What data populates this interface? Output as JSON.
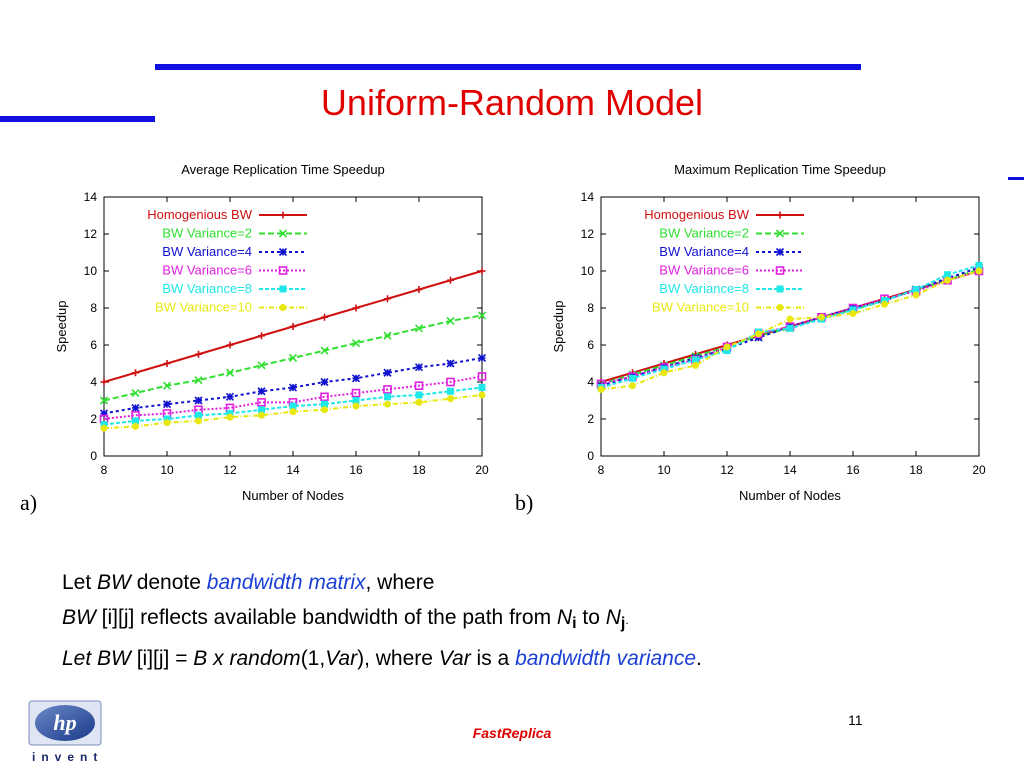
{
  "slide": {
    "title": "Uniform-Random Model",
    "footer": "FastReplica",
    "page_number": "11",
    "logo_text": "hp",
    "logo_tagline": "invent",
    "panel_labels": [
      "a)",
      "b)"
    ]
  },
  "text": {
    "line1": {
      "let": "Let ",
      "bw": "BW",
      "denote": " denote ",
      "bm": "bandwidth matrix",
      "where": ", where"
    },
    "line2": {
      "bw": "BW",
      "rest": " [i][j] reflects available bandwidth of the path from ",
      "n": "N",
      "ni": "i",
      "to": "  to ",
      "n2": "N",
      "nj": "j",
      "dot": "."
    },
    "line3": {
      "let": "Let   BW",
      "ij": " [i][j] = ",
      "expr": " B x random",
      "args": "(1,",
      "var": "Var",
      "close": "),  where ",
      "var2": "Var",
      "isa": " is a ",
      "bv": "bandwidth variance",
      "end": "."
    }
  },
  "colors": {
    "title": "#e00000",
    "bars": "#1010e0",
    "accent_text": "#1a3fd6"
  },
  "chart_data": [
    {
      "type": "line",
      "title": "Average Replication Time Speedup",
      "xlabel": "Number of Nodes",
      "ylabel": "Speedup",
      "xlim": [
        8,
        20
      ],
      "ylim": [
        0,
        14
      ],
      "xticks": [
        8,
        10,
        12,
        14,
        16,
        18,
        20
      ],
      "yticks": [
        0,
        2,
        4,
        6,
        8,
        10,
        12,
        14
      ],
      "legend": "top-left",
      "x": [
        8,
        9,
        10,
        11,
        12,
        13,
        14,
        15,
        16,
        17,
        18,
        19,
        20
      ],
      "series": [
        {
          "name": "Homogenious BW",
          "color": "#d01010",
          "marker": "plus",
          "dash": "",
          "values": [
            4.0,
            4.5,
            5.0,
            5.5,
            6.0,
            6.5,
            7.0,
            7.5,
            8.0,
            8.5,
            9.0,
            9.5,
            10.0
          ]
        },
        {
          "name": "BW Variance=2",
          "color": "#30e030",
          "marker": "x",
          "dash": "6,3",
          "values": [
            3.0,
            3.4,
            3.8,
            4.1,
            4.5,
            4.9,
            5.3,
            5.7,
            6.1,
            6.5,
            6.9,
            7.3,
            7.6
          ]
        },
        {
          "name": "BW Variance=4",
          "color": "#1010d0",
          "marker": "star",
          "dash": "3,3",
          "values": [
            2.3,
            2.6,
            2.8,
            3.0,
            3.2,
            3.5,
            3.7,
            4.0,
            4.2,
            4.5,
            4.8,
            5.0,
            5.3
          ]
        },
        {
          "name": "BW Variance=6",
          "color": "#e020e0",
          "marker": "square",
          "dash": "2,2",
          "values": [
            2.0,
            2.2,
            2.3,
            2.5,
            2.6,
            2.9,
            2.9,
            3.2,
            3.4,
            3.6,
            3.8,
            4.0,
            4.3
          ]
        },
        {
          "name": "BW Variance=8",
          "color": "#20e8e8",
          "marker": "filledsquare",
          "dash": "4,2",
          "values": [
            1.7,
            1.9,
            2.0,
            2.2,
            2.3,
            2.5,
            2.7,
            2.8,
            3.0,
            3.2,
            3.3,
            3.5,
            3.7
          ]
        },
        {
          "name": "BW Variance=10",
          "color": "#e8e810",
          "marker": "circle",
          "dash": "5,2,1,2",
          "values": [
            1.5,
            1.6,
            1.8,
            1.9,
            2.1,
            2.2,
            2.4,
            2.5,
            2.7,
            2.8,
            2.9,
            3.1,
            3.3
          ]
        }
      ]
    },
    {
      "type": "line",
      "title": "Maximum Replication Time Speedup",
      "xlabel": "Number of Nodes",
      "ylabel": "Speedup",
      "xlim": [
        8,
        20
      ],
      "ylim": [
        0,
        14
      ],
      "xticks": [
        8,
        10,
        12,
        14,
        16,
        18,
        20
      ],
      "yticks": [
        0,
        2,
        4,
        6,
        8,
        10,
        12,
        14
      ],
      "legend": "top-left",
      "x": [
        8,
        9,
        10,
        11,
        12,
        13,
        14,
        15,
        16,
        17,
        18,
        19,
        20
      ],
      "series": [
        {
          "name": "Homogenious BW",
          "color": "#d01010",
          "marker": "plus",
          "dash": "",
          "values": [
            4.0,
            4.5,
            5.0,
            5.5,
            6.0,
            6.5,
            7.0,
            7.5,
            8.0,
            8.5,
            9.0,
            9.5,
            10.0
          ]
        },
        {
          "name": "BW Variance=2",
          "color": "#30e030",
          "marker": "x",
          "dash": "6,3",
          "values": [
            3.9,
            4.4,
            4.9,
            5.4,
            5.9,
            6.5,
            6.9,
            7.5,
            7.9,
            8.4,
            9.0,
            9.5,
            10.1
          ]
        },
        {
          "name": "BW Variance=4",
          "color": "#1010d0",
          "marker": "star",
          "dash": "3,3",
          "values": [
            3.8,
            4.3,
            4.8,
            5.3,
            5.8,
            6.4,
            7.0,
            7.5,
            8.0,
            8.4,
            9.0,
            9.6,
            10.2
          ]
        },
        {
          "name": "BW Variance=6",
          "color": "#e020e0",
          "marker": "square",
          "dash": "2,2",
          "values": [
            3.9,
            4.3,
            4.8,
            5.2,
            5.9,
            6.6,
            7.0,
            7.5,
            8.0,
            8.5,
            8.9,
            9.5,
            10.0
          ]
        },
        {
          "name": "BW Variance=8",
          "color": "#20e8e8",
          "marker": "filledsquare",
          "dash": "4,2",
          "values": [
            3.7,
            4.2,
            4.7,
            5.2,
            5.7,
            6.7,
            6.9,
            7.4,
            7.9,
            8.4,
            9.0,
            9.8,
            10.3
          ]
        },
        {
          "name": "BW Variance=10",
          "color": "#e8e810",
          "marker": "circle",
          "dash": "5,2,1,2",
          "values": [
            3.6,
            3.8,
            4.5,
            4.9,
            5.9,
            6.6,
            7.4,
            7.5,
            7.7,
            8.2,
            8.7,
            9.5,
            10.0
          ]
        }
      ]
    }
  ]
}
